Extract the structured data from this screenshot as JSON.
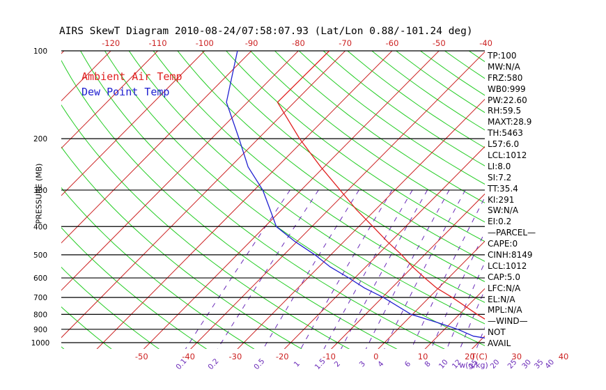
{
  "title": "AIRS SkewT Diagram 2010-08-24/07:58:07.93 (Lat/Lon 0.88/-101.24 deg)",
  "y_axis_label": "PRESSURE (MB)",
  "legend": {
    "ambient": "Ambient Air Temp",
    "dewpoint": "Dew Point Temp"
  },
  "colors": {
    "ambient": "#e02020",
    "dewpoint": "#2020d0",
    "adiabat": "#22cc22",
    "isotherm": "#cc2222",
    "mixing_ratio": "#6a2ab8",
    "isobar": "#000000"
  },
  "bottom_axis_unit": "T(C)",
  "mixing_ratio_unit": "w(g/kg)",
  "stats": [
    "TP:100",
    "MW:N/A",
    "FRZ:580",
    "WB0:999",
    "PW:22.60",
    "RH:59.5",
    "MAXT:28.9",
    "TH:5463",
    "L57:6.0",
    "LCL:1012",
    "LI:8.0",
    "SI:7.2",
    "TT:35.4",
    "KI:291",
    "SW:N/A",
    "EI:0.2",
    "—PARCEL—",
    "CAPE:0",
    "CINH:8149",
    "LCL:1012",
    "CAP:5.0",
    "LFC:N/A",
    "EL:N/A",
    "MPL:N/A",
    "—WIND—",
    "NOT",
    "AVAIL"
  ],
  "chart_data": {
    "type": "line",
    "title": "AIRS SkewT Diagram 2010-08-24/07:58:07.93 (Lat/Lon 0.88/-101.24 deg)",
    "xlabel": "T(C)",
    "ylabel": "PRESSURE (MB)",
    "y_scale": "log",
    "y_reversed": true,
    "pressure_levels": [
      100,
      200,
      300,
      400,
      500,
      600,
      700,
      800,
      900,
      1000
    ],
    "bottom_temp_ticks": [
      -50,
      -40,
      -30,
      -20,
      -10,
      0,
      10,
      20,
      30,
      40
    ],
    "top_temp_ticks": [
      -120,
      -110,
      -100,
      -90,
      -80,
      -70,
      -60,
      -50,
      -40
    ],
    "mixing_ratio_ticks": [
      "0.1",
      "0.2",
      "0.5",
      "1",
      "1.5",
      "2",
      "3",
      "4",
      "6",
      "8",
      "10",
      "12",
      "15",
      "20",
      "25",
      "30",
      "35",
      "40"
    ],
    "series": [
      {
        "name": "Ambient Air Temp",
        "pressure": [
          1000,
          975,
          950,
          900,
          850,
          800,
          700,
          650,
          600,
          550,
          500,
          450,
          400,
          350,
          300,
          250,
          200,
          150,
          100
        ],
        "temperature": [
          28.0,
          25.8,
          25.9,
          22.6,
          18.1,
          13.8,
          4.9,
          -0.4,
          -5.1,
          -10.0,
          -14.9,
          -20.8,
          -27.0,
          -34.1,
          -41.7,
          -50.7,
          -61.2,
          -73.6,
          -73.4
        ]
      },
      {
        "name": "Dew Point Temp",
        "pressure": [
          1000,
          975,
          950,
          900,
          850,
          800,
          700,
          650,
          600,
          550,
          500,
          450,
          400,
          350,
          300,
          250,
          200,
          150,
          100
        ],
        "temperature": [
          26.8,
          22.7,
          17.6,
          12.8,
          6.6,
          -0.3,
          -9.8,
          -15.8,
          -21.3,
          -27.6,
          -33.4,
          -40.5,
          -47.6,
          -52.5,
          -58.2,
          -66.2,
          -74.1,
          -84.5,
          -93.0
        ]
      }
    ]
  }
}
